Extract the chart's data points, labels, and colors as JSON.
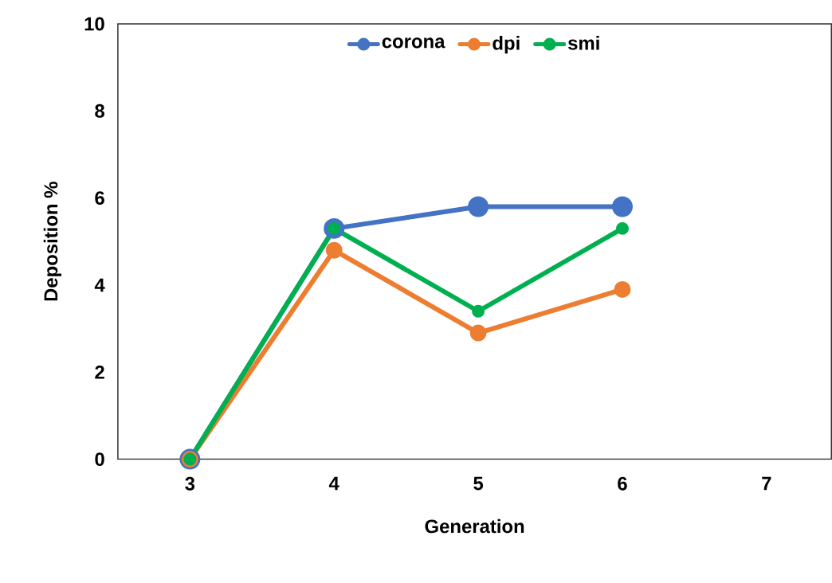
{
  "chart_data": {
    "type": "line",
    "xlabel": "Generation",
    "ylabel": "Deposition %",
    "x": [
      3,
      4,
      5,
      6
    ],
    "series": [
      {
        "name": "corona",
        "color": "#4472c4",
        "values": [
          0,
          5.3,
          5.8,
          5.8
        ]
      },
      {
        "name": "dpi",
        "color": "#ed7d31",
        "values": [
          0,
          4.8,
          2.9,
          3.9
        ]
      },
      {
        "name": "smi",
        "color": "#00b050",
        "values": [
          0,
          5.3,
          3.4,
          5.3
        ]
      }
    ],
    "xlim": [
      2.5,
      7.45
    ],
    "xticks": [
      3,
      4,
      5,
      6,
      7
    ],
    "ylim": [
      0,
      10
    ],
    "yticks": [
      0,
      2,
      4,
      6,
      8,
      10
    ],
    "legend": "top",
    "marker": "circle",
    "line_style": "solid",
    "grid": false
  }
}
